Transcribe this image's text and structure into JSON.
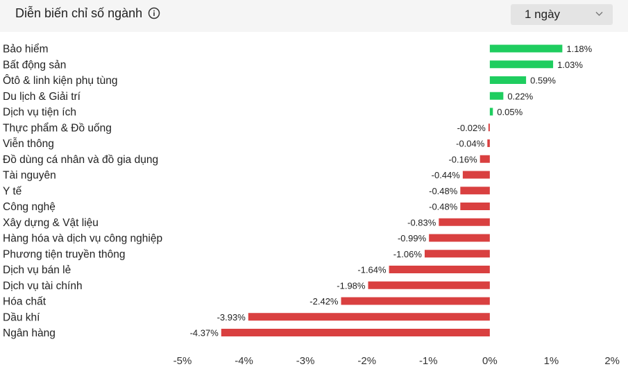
{
  "header": {
    "title": "Diễn biến chỉ số ngành",
    "info_icon": "info-icon",
    "period_select": {
      "value": "1 ngày",
      "icon": "chevron-down-icon"
    }
  },
  "colors": {
    "positive": "#1fcd5f",
    "negative": "#d94040",
    "header_bg": "#f5f5f5",
    "select_bg": "#e4e4e4"
  },
  "chart_data": {
    "type": "bar",
    "orientation": "horizontal",
    "categories": [
      "Bảo hiểm",
      "Bất động sản",
      "Ôtô & linh kiện phụ tùng",
      "Du lịch & Giải trí",
      "Dịch vụ tiện ích",
      "Thực phẩm & Đồ uống",
      "Viễn thông",
      "Đồ dùng cá nhân và đồ gia dụng",
      "Tài nguyên",
      "Y tế",
      "Công nghệ",
      "Xây dựng & Vật liệu",
      "Hàng hóa và dịch vụ công nghiệp",
      "Phương tiện truyền thông",
      "Dịch vụ bán lẻ",
      "Dịch vụ tài chính",
      "Hóa chất",
      "Dầu khí",
      "Ngân hàng"
    ],
    "values": [
      1.18,
      1.03,
      0.59,
      0.22,
      0.05,
      -0.02,
      -0.04,
      -0.16,
      -0.44,
      -0.48,
      -0.48,
      -0.83,
      -0.99,
      -1.06,
      -1.64,
      -1.98,
      -2.42,
      -3.93,
      -4.37
    ],
    "value_labels": [
      "1.18%",
      "1.03%",
      "0.59%",
      "0.22%",
      "0.05%",
      "-0.02%",
      "-0.04%",
      "-0.16%",
      "-0.44%",
      "-0.48%",
      "-0.48%",
      "-0.83%",
      "-0.99%",
      "-1.06%",
      "-1.64%",
      "-1.98%",
      "-2.42%",
      "-3.93%",
      "-4.37%"
    ],
    "xlim": [
      -5,
      2
    ],
    "x_ticks": [
      -5,
      -4,
      -3,
      -2,
      -1,
      0,
      1,
      2
    ],
    "x_tick_labels": [
      "-5%",
      "-4%",
      "-3%",
      "-2%",
      "-1%",
      "0%",
      "1%",
      "2%"
    ],
    "grid": false,
    "legend": "none"
  }
}
